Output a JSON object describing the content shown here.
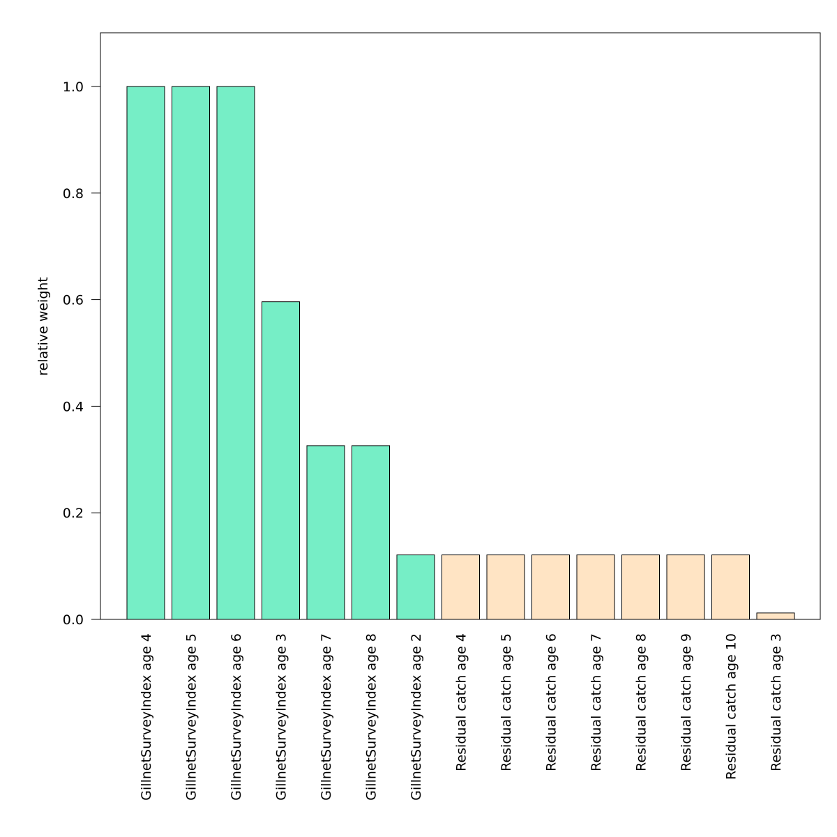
{
  "chart_data": {
    "type": "bar",
    "title": "",
    "xlabel": "",
    "ylabel": "relative weight",
    "ylim": [
      0,
      1.1
    ],
    "yticks": [
      "0.0",
      "0.2",
      "0.4",
      "0.6",
      "0.8",
      "1.0"
    ],
    "grid": false,
    "categories": [
      "GillnetSurveyIndex age 4",
      "GillnetSurveyIndex age 5",
      "GillnetSurveyIndex age 6",
      "GillnetSurveyIndex age 3",
      "GillnetSurveyIndex age 7",
      "GillnetSurveyIndex age 8",
      "GillnetSurveyIndex age 2",
      "Residual catch age 4",
      "Residual catch age 5",
      "Residual catch age 6",
      "Residual catch age 7",
      "Residual catch age 8",
      "Residual catch age 9",
      "Residual catch age 10",
      "Residual catch age 3"
    ],
    "values": [
      1.0,
      1.0,
      1.0,
      0.596,
      0.326,
      0.326,
      0.121,
      0.121,
      0.121,
      0.121,
      0.121,
      0.121,
      0.121,
      0.121,
      0.012
    ],
    "groups": [
      "survey",
      "survey",
      "survey",
      "survey",
      "survey",
      "survey",
      "survey",
      "catch",
      "catch",
      "catch",
      "catch",
      "catch",
      "catch",
      "catch",
      "catch"
    ],
    "colors": {
      "survey": "#76EEC6",
      "catch": "#FFE4C4",
      "bar_stroke": "#000000",
      "axis": "#000000"
    }
  }
}
